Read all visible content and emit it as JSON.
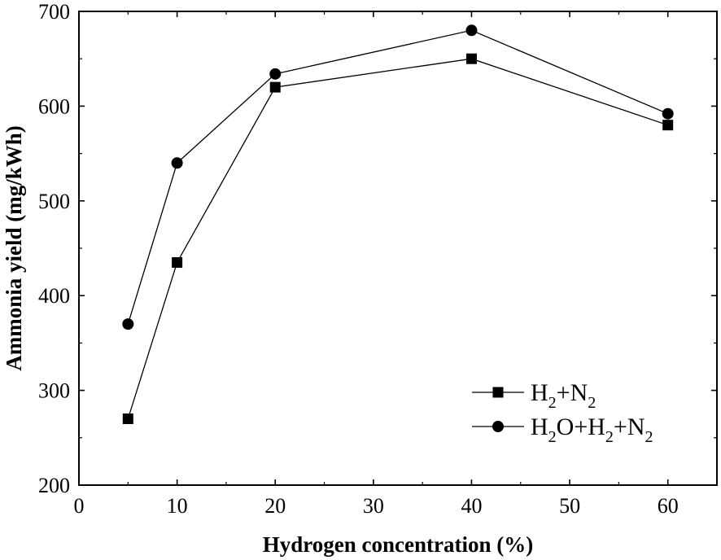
{
  "chart_data": {
    "type": "line",
    "title": "",
    "xlabel": "Hydrogen concentration (%)",
    "ylabel": "Ammonia yield (mg/kWh)",
    "xlim": [
      0,
      65
    ],
    "ylim": [
      200,
      700
    ],
    "xticks": [
      0,
      10,
      20,
      30,
      40,
      50,
      60
    ],
    "yticks": [
      200,
      300,
      400,
      500,
      600,
      700
    ],
    "x": [
      5,
      10,
      20,
      40,
      60
    ],
    "series": [
      {
        "name": "H2+N2",
        "label_parts": [
          "H",
          "2",
          "+N",
          "2"
        ],
        "marker": "square",
        "values": [
          270,
          435,
          620,
          650,
          580
        ]
      },
      {
        "name": "H2O+H2+N2",
        "label_parts": [
          "H",
          "2",
          "O+H",
          "2",
          "+N",
          "2"
        ],
        "marker": "circle",
        "values": [
          370,
          540,
          634,
          680,
          592
        ]
      }
    ],
    "grid": false,
    "legend_position": "bottom-right",
    "colors": {
      "line": "#000000",
      "marker": "#000000",
      "axis": "#000000",
      "background": "#ffffff"
    }
  }
}
